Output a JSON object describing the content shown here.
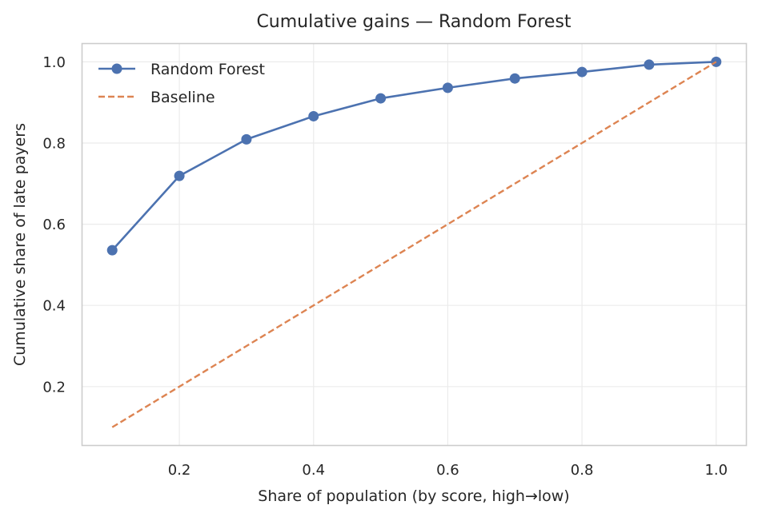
{
  "chart_data": {
    "type": "line",
    "title": "Cumulative gains — Random Forest",
    "xlabel": "Share of population (by score, high→low)",
    "ylabel": "Cumulative share of late payers",
    "xlim": [
      0.055,
      1.045
    ],
    "ylim": [
      0.055,
      1.045
    ],
    "xticks": [
      0.2,
      0.4,
      0.6,
      0.8,
      1.0
    ],
    "xtick_labels": [
      "0.2",
      "0.4",
      "0.6",
      "0.8",
      "1.0"
    ],
    "yticks": [
      0.2,
      0.4,
      0.6,
      0.8,
      1.0
    ],
    "ytick_labels": [
      "0.2",
      "0.4",
      "0.6",
      "0.8",
      "1.0"
    ],
    "grid": true,
    "legend_position": "top-left",
    "series": [
      {
        "name": "Random Forest",
        "style": "solid-markers",
        "color": "#4c72b0",
        "x": [
          0.1,
          0.2,
          0.3,
          0.4,
          0.5,
          0.6,
          0.7,
          0.8,
          0.9,
          1.0
        ],
        "y": [
          0.536,
          0.719,
          0.809,
          0.866,
          0.91,
          0.936,
          0.959,
          0.975,
          0.993,
          1.0
        ]
      },
      {
        "name": "Baseline",
        "style": "dashed",
        "color": "#dd8452",
        "x": [
          0.1,
          1.0
        ],
        "y": [
          0.1,
          1.0
        ]
      }
    ]
  }
}
